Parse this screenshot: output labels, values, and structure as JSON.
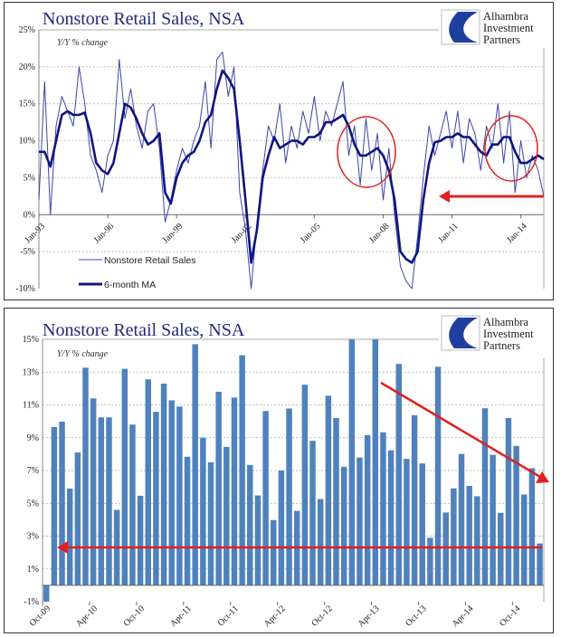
{
  "logo": {
    "lines": [
      "Alhambra",
      "Investment",
      "Partners"
    ]
  },
  "colors": {
    "title": "#1f2a7a",
    "raw_line": "#3b45a8",
    "ma_line": "#0d1580",
    "bar": "#4f81bd",
    "annotation": "#e02020"
  },
  "chart_data": [
    {
      "type": "line",
      "title": "Nonstore Retail Sales,  NSA",
      "subtitle": "Y/Y % change",
      "ylim": [
        -10,
        25
      ],
      "yticks": [
        "25%",
        "20%",
        "15%",
        "10%",
        "5%",
        "0%",
        "-5%",
        "-10%"
      ],
      "ytick_values": [
        25,
        20,
        15,
        10,
        5,
        0,
        -5,
        -10
      ],
      "xticks": [
        "Jan-93",
        "Jan-96",
        "Jan-99",
        "Jan-02",
        "Jan-05",
        "Jan-08",
        "Jan-11",
        "Jan-14"
      ],
      "grid": "horizontal dashed",
      "legend": "bottom-left",
      "x_start": "1993-01",
      "x_step": "quarter",
      "series": [
        {
          "name": "Nonstore Retail Sales",
          "values": [
            2,
            18,
            0,
            12,
            16,
            14,
            12,
            20,
            15,
            8,
            6,
            3,
            8,
            10,
            21,
            13,
            17,
            12,
            9,
            14,
            15,
            9,
            -1,
            2,
            6,
            9,
            7,
            10,
            12,
            18,
            9,
            21,
            22,
            16,
            20,
            3,
            -2,
            -10,
            -1,
            6,
            12,
            10,
            15,
            7,
            12,
            9,
            14,
            11,
            16,
            10,
            14,
            12,
            15,
            18,
            8,
            12,
            4,
            13,
            6,
            11,
            2,
            9,
            0,
            -7,
            -9,
            -10,
            -3,
            5,
            12,
            8,
            11,
            14,
            9,
            14,
            7,
            13,
            11,
            6,
            12,
            9,
            15,
            7,
            14,
            3,
            10,
            5,
            8,
            6,
            2.5
          ]
        },
        {
          "name": "6-month MA",
          "values": [
            8.5,
            8.5,
            6.5,
            10,
            13.5,
            14,
            13.5,
            13.5,
            13.8,
            11,
            7,
            6,
            5.5,
            7,
            11,
            15,
            14.5,
            13,
            11,
            9.5,
            10,
            11,
            3,
            1.5,
            5,
            7,
            8,
            8.5,
            10,
            12.5,
            13.5,
            17,
            19.5,
            18.5,
            17,
            10,
            2,
            -6.5,
            -2,
            5,
            8,
            10.5,
            9,
            9.5,
            10,
            10,
            9.5,
            10.5,
            10.5,
            11,
            12.5,
            12.5,
            13,
            13.5,
            12,
            9.5,
            8,
            8,
            8.5,
            9,
            8,
            6,
            2,
            -5,
            -6,
            -6.5,
            -5,
            2,
            7,
            9.8,
            10,
            10.5,
            10.5,
            11,
            10.5,
            10.5,
            9.5,
            8.5,
            8,
            9.5,
            9.5,
            10.5,
            10.5,
            8.5,
            7,
            7,
            7.5,
            8,
            7.5
          ]
        }
      ]
    },
    {
      "type": "bar",
      "title": "Nonstore Retail Sales,  NSA",
      "subtitle": "Y/Y % change",
      "ylim": [
        -1,
        15
      ],
      "yticks": [
        "15%",
        "13%",
        "11%",
        "9%",
        "7%",
        "5%",
        "3%",
        "1%",
        "-1%"
      ],
      "ytick_values": [
        15,
        13,
        11,
        9,
        7,
        5,
        3,
        1,
        -1
      ],
      "xticks": [
        "Oct-09",
        "Apr-10",
        "Oct-10",
        "Apr-11",
        "Oct-11",
        "Apr-12",
        "Oct-12",
        "Apr-13",
        "Oct-13",
        "Apr-14",
        "Oct-14"
      ],
      "grid": "horizontal dashed",
      "x_start": "2009-10",
      "x_step": "month",
      "values": [
        -1,
        9.65,
        9.98,
        5.9,
        8.1,
        13.27,
        11.4,
        10.24,
        10.24,
        4.6,
        13.2,
        9.8,
        5.46,
        12.56,
        10.58,
        12.3,
        11.28,
        10.9,
        7.84,
        14.7,
        9.0,
        7.5,
        11.8,
        8.44,
        11.45,
        14.03,
        7.34,
        5.48,
        10.63,
        3.98,
        7.0,
        10.78,
        4.54,
        12.23,
        8.81,
        5.26,
        11.56,
        10.2,
        7.23,
        15,
        7.79,
        9.16,
        15,
        9.33,
        8.23,
        13.5,
        7.71,
        10.37,
        7.43,
        2.9,
        13.33,
        4.44,
        5.91,
        8.01,
        6.06,
        5.43,
        10.8,
        7.96,
        4.42,
        10.2,
        8.5,
        5.54,
        7.14,
        2.55
      ]
    }
  ]
}
